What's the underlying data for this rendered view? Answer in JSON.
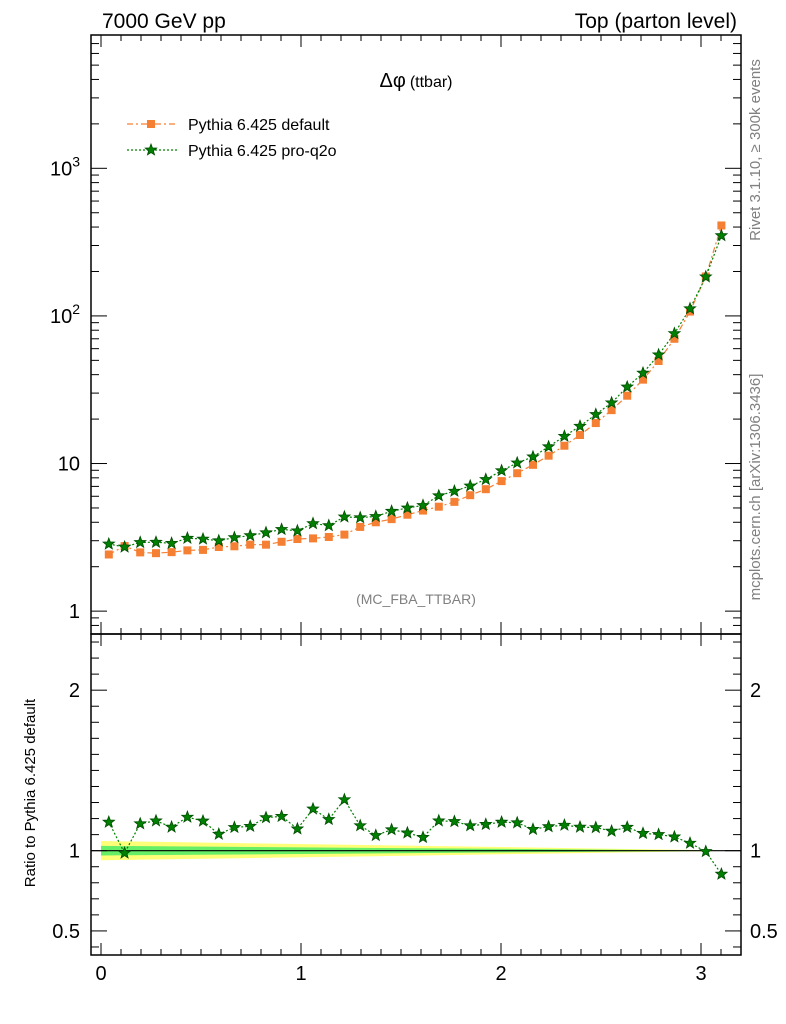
{
  "header": {
    "left": "7000 GeV pp",
    "right": "Top (parton level)"
  },
  "side": {
    "rivet": "Rivet 3.1.10, ≥ 300k events",
    "mcplots": "mcplots.cern.ch [arXiv:1306.3436]"
  },
  "colors": {
    "default": "#f57f32",
    "proq2o": "#008000",
    "band_inner": "#66ee66",
    "band_outer": "#ffff77",
    "reference_line": "#000000",
    "side_text": "#808080"
  },
  "chart_data": [
    {
      "type": "line",
      "title": "Δφ (ttbar)",
      "title_symbol": "Δφ",
      "title_rest": "(ttbar)",
      "watermark": "(MC_FBA_TTBAR)",
      "yscale": "log",
      "ylim": [
        0.7,
        8000
      ],
      "xlim": [
        -0.05,
        3.2
      ],
      "y_ticks": [
        {
          "label_base": "1",
          "label_exp": ""
        },
        {
          "label_base": "10",
          "label_exp": ""
        },
        {
          "label_base": "10",
          "label_exp": "2"
        },
        {
          "label_base": "10",
          "label_exp": "3"
        }
      ],
      "legend": {
        "placement": "top-left"
      },
      "x": [
        0.039,
        0.118,
        0.196,
        0.275,
        0.353,
        0.432,
        0.51,
        0.589,
        0.667,
        0.746,
        0.825,
        0.903,
        0.982,
        1.06,
        1.139,
        1.217,
        1.296,
        1.374,
        1.453,
        1.532,
        1.61,
        1.689,
        1.767,
        1.846,
        1.924,
        2.003,
        2.081,
        2.16,
        2.238,
        2.317,
        2.395,
        2.474,
        2.553,
        2.631,
        2.71,
        2.788,
        2.867,
        2.945,
        3.024,
        3.102
      ],
      "series": [
        {
          "name": "Pythia 6.425 default",
          "marker": "square",
          "values": [
            2.42,
            2.76,
            2.5,
            2.47,
            2.51,
            2.58,
            2.6,
            2.72,
            2.75,
            2.82,
            2.82,
            2.95,
            3.08,
            3.11,
            3.18,
            3.3,
            3.72,
            4.0,
            4.2,
            4.5,
            4.8,
            5.1,
            5.5,
            6.1,
            6.7,
            7.6,
            8.6,
            9.8,
            11.3,
            13.2,
            15.6,
            18.8,
            23.0,
            28.8,
            37.0,
            49.5,
            70.0,
            107.0,
            185.0,
            410.0
          ]
        },
        {
          "name": "Pythia 6.425 pro-q2o",
          "marker": "star",
          "values": [
            2.85,
            2.72,
            2.92,
            2.93,
            2.88,
            3.12,
            3.08,
            3.0,
            3.15,
            3.25,
            3.4,
            3.58,
            3.5,
            3.92,
            3.8,
            4.35,
            4.3,
            4.38,
            4.75,
            5.0,
            5.2,
            6.05,
            6.5,
            7.05,
            7.8,
            8.95,
            10.1,
            11.1,
            13.0,
            15.3,
            17.9,
            21.5,
            25.8,
            33.0,
            41.0,
            54.5,
            76.0,
            112.0,
            184.0,
            350.0
          ]
        }
      ]
    },
    {
      "type": "line",
      "ylabel": "Ratio to Pythia 6.425 default",
      "ylim": [
        0.35,
        2.35
      ],
      "xlim": [
        -0.05,
        3.2
      ],
      "x_ticks": [
        "0",
        "1",
        "2",
        "3"
      ],
      "y_ticks": [
        "0.5",
        "1",
        "2"
      ],
      "reference": 1.0,
      "band": {
        "x": [
          0.0,
          3.2
        ],
        "outer_lower": [
          0.94,
          1.0
        ],
        "outer_upper": [
          1.06,
          1.0
        ],
        "inner_lower": [
          0.97,
          1.0
        ],
        "inner_upper": [
          1.03,
          1.0
        ]
      },
      "series": [
        {
          "name": "Pythia 6.425 pro-q2o",
          "values": [
            1.178,
            0.985,
            1.168,
            1.186,
            1.147,
            1.209,
            1.185,
            1.103,
            1.145,
            1.152,
            1.206,
            1.214,
            1.136,
            1.26,
            1.195,
            1.318,
            1.156,
            1.095,
            1.131,
            1.111,
            1.083,
            1.186,
            1.182,
            1.156,
            1.164,
            1.178,
            1.174,
            1.133,
            1.15,
            1.159,
            1.147,
            1.144,
            1.122,
            1.146,
            1.108,
            1.101,
            1.086,
            1.047,
            0.995,
            0.854
          ]
        }
      ]
    }
  ]
}
